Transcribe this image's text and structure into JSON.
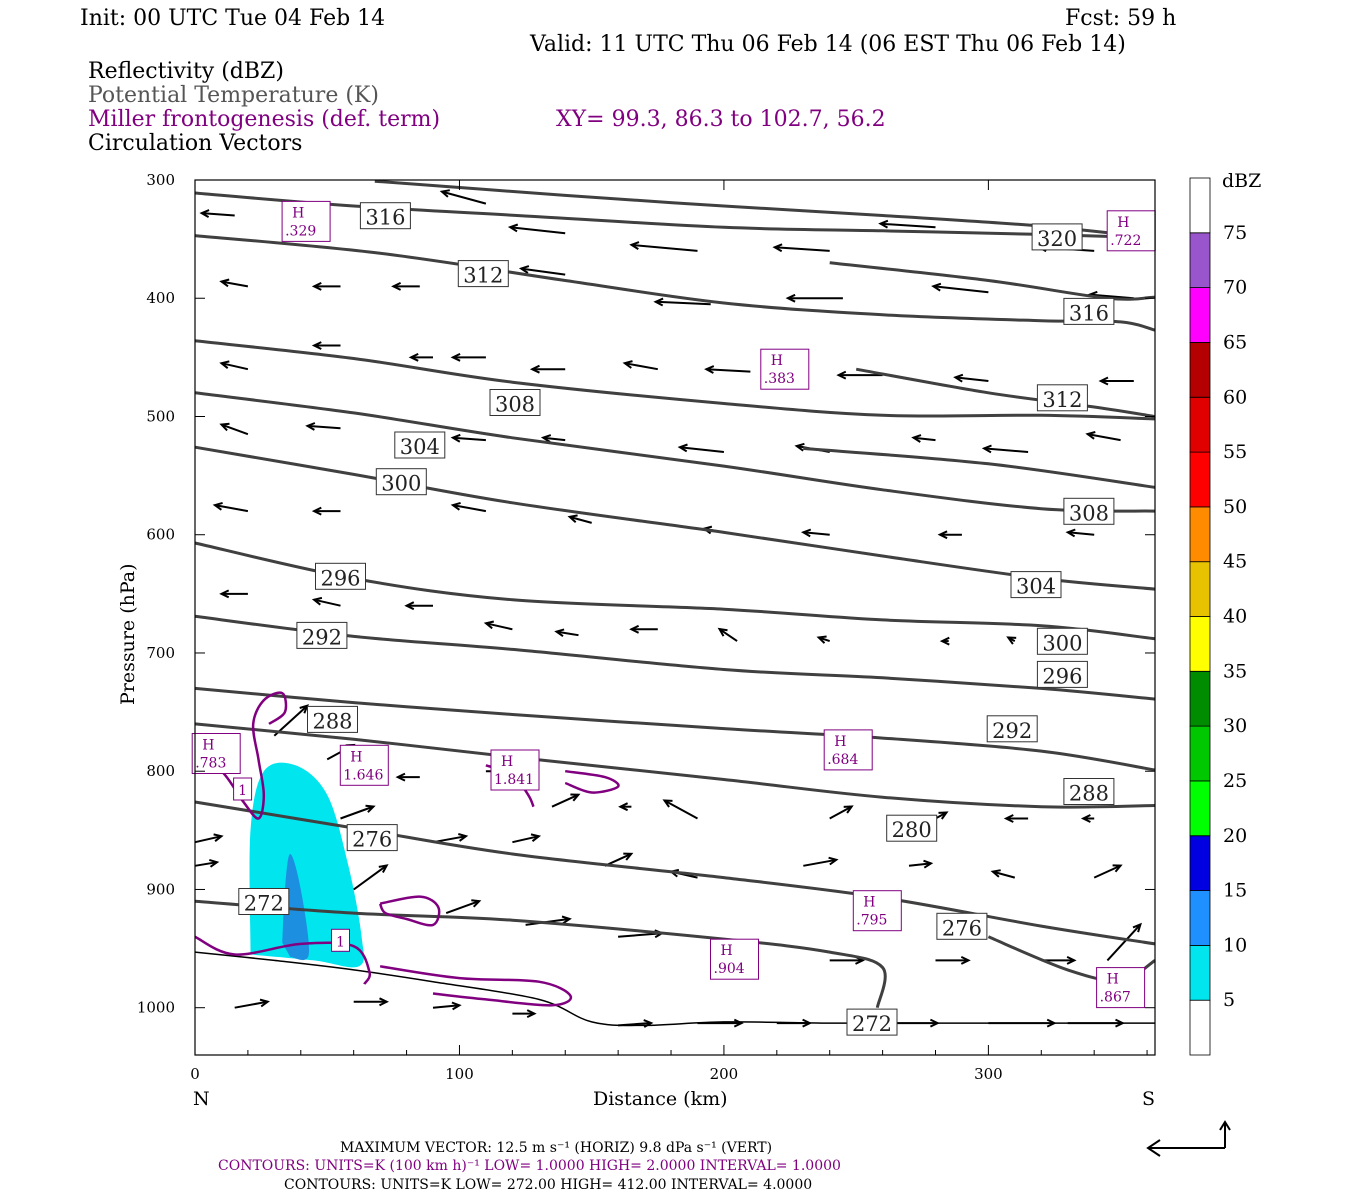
{
  "header": {
    "init": "Init: 00 UTC Tue 04 Feb 14",
    "fcst": "Fcst:   59 h",
    "valid": "Valid: 11 UTC Thu 06 Feb 14 (06 EST Thu 06 Feb 14)",
    "line_reflectivity": "Reflectivity (dBZ)",
    "line_theta": "Potential Temperature (K)",
    "line_miller": "Miller frontogenesis (def. term)",
    "line_xy": "XY=  99.3, 86.3 to 102.7, 56.2",
    "line_vectors": "Circulation Vectors"
  },
  "colors": {
    "theta": "#404040",
    "miller": "#800080",
    "refl_5": "#00e5ee",
    "refl_10": "#1c8fe0"
  },
  "colorbar": {
    "unit": "dBZ",
    "levels": [
      "5",
      "10",
      "15",
      "20",
      "25",
      "30",
      "35",
      "40",
      "45",
      "50",
      "55",
      "60",
      "65",
      "70",
      "75"
    ],
    "colors": [
      "#ffffff",
      "#00e5ee",
      "#1e90ff",
      "#0000e0",
      "#00ff00",
      "#00c800",
      "#008c00",
      "#ffff00",
      "#e6c200",
      "#ff8c00",
      "#ff0000",
      "#e00000",
      "#b40000",
      "#ff00ff",
      "#9955cc",
      "#ffffff"
    ]
  },
  "chart_data": {
    "type": "cross-section",
    "xlabel": "Distance (km)",
    "ylabel": "Pressure (hPa)",
    "xlim": [
      0,
      363
    ],
    "ylim": [
      1040,
      300
    ],
    "x_ticks": [
      "0",
      "100",
      "200",
      "300"
    ],
    "y_ticks": [
      "300",
      "400",
      "500",
      "600",
      "700",
      "800",
      "900",
      "1000"
    ],
    "left_endpoint": "N",
    "right_endpoint": "S",
    "theta_contours": [
      {
        "label": "316",
        "points": [
          [
            0,
            311
          ],
          [
            60,
            322
          ],
          [
            130,
            331
          ],
          [
            200,
            340
          ],
          [
            260,
            343
          ],
          [
            320,
            346
          ],
          [
            363,
            349
          ]
        ]
      },
      {
        "label": "320",
        "points": [
          [
            68,
            301
          ],
          [
            140,
            313
          ],
          [
            200,
            322
          ],
          [
            260,
            330
          ],
          [
            320,
            339
          ],
          [
            363,
            349
          ]
        ]
      },
      {
        "label": "312",
        "points": [
          [
            0,
            347
          ],
          [
            70,
            362
          ],
          [
            140,
            385
          ],
          [
            200,
            404
          ],
          [
            260,
            414
          ],
          [
            320,
            419
          ],
          [
            350,
            420
          ],
          [
            363,
            427
          ]
        ]
      },
      {
        "label": "316b",
        "points": [
          [
            240,
            370
          ],
          [
            300,
            385
          ],
          [
            345,
            400
          ],
          [
            363,
            399
          ]
        ]
      },
      {
        "label": "308",
        "points": [
          [
            0,
            436
          ],
          [
            60,
            451
          ],
          [
            120,
            471
          ],
          [
            200,
            489
          ],
          [
            260,
            499
          ],
          [
            320,
            499
          ],
          [
            363,
            502
          ]
        ]
      },
      {
        "label": "312b",
        "points": [
          [
            250,
            460
          ],
          [
            300,
            480
          ],
          [
            340,
            492
          ],
          [
            363,
            500
          ]
        ]
      },
      {
        "label": "304",
        "points": [
          [
            0,
            480
          ],
          [
            60,
            497
          ],
          [
            120,
            518
          ],
          [
            200,
            542
          ],
          [
            260,
            562
          ],
          [
            320,
            578
          ],
          [
            363,
            580
          ]
        ]
      },
      {
        "label": "308b",
        "points": [
          [
            230,
            527
          ],
          [
            300,
            540
          ],
          [
            363,
            560
          ]
        ]
      },
      {
        "label": "300",
        "points": [
          [
            0,
            526
          ],
          [
            60,
            549
          ],
          [
            120,
            573
          ],
          [
            200,
            598
          ],
          [
            260,
            618
          ],
          [
            320,
            637
          ],
          [
            363,
            646
          ]
        ]
      },
      {
        "label": "296",
        "points": [
          [
            0,
            607
          ],
          [
            60,
            637
          ],
          [
            120,
            655
          ],
          [
            200,
            663
          ],
          [
            260,
            672
          ],
          [
            320,
            677
          ],
          [
            363,
            688
          ]
        ]
      },
      {
        "label": "292",
        "points": [
          [
            0,
            669
          ],
          [
            60,
            686
          ],
          [
            120,
            697
          ],
          [
            200,
            714
          ],
          [
            260,
            721
          ],
          [
            320,
            730
          ],
          [
            363,
            739
          ]
        ]
      },
      {
        "label": "288",
        "points": [
          [
            0,
            730
          ],
          [
            60,
            742
          ],
          [
            120,
            752
          ],
          [
            200,
            764
          ],
          [
            260,
            772
          ],
          [
            320,
            783
          ],
          [
            363,
            799
          ]
        ]
      },
      {
        "label": "280",
        "points": [
          [
            0,
            760
          ],
          [
            60,
            773
          ],
          [
            120,
            788
          ],
          [
            200,
            807
          ],
          [
            260,
            822
          ],
          [
            320,
            830
          ],
          [
            363,
            829
          ]
        ]
      },
      {
        "label": "276",
        "points": [
          [
            0,
            826
          ],
          [
            60,
            848
          ],
          [
            120,
            870
          ],
          [
            200,
            890
          ],
          [
            260,
            907
          ],
          [
            320,
            931
          ],
          [
            363,
            946
          ]
        ]
      },
      {
        "label": "272",
        "points": [
          [
            0,
            910
          ],
          [
            60,
            920
          ],
          [
            120,
            926
          ],
          [
            200,
            942
          ],
          [
            240,
            953
          ],
          [
            260,
            966
          ],
          [
            258,
            1000
          ]
        ]
      },
      {
        "label": "276b",
        "points": [
          [
            300,
            940
          ],
          [
            330,
            968
          ],
          [
            350,
            977
          ],
          [
            363,
            960
          ]
        ]
      }
    ],
    "theta_labels": [
      {
        "text": "316",
        "x": 72,
        "p": 331
      },
      {
        "text": "312",
        "x": 109,
        "p": 380
      },
      {
        "text": "308",
        "x": 121,
        "p": 489
      },
      {
        "text": "304",
        "x": 85,
        "p": 525
      },
      {
        "text": "300",
        "x": 78,
        "p": 556
      },
      {
        "text": "296",
        "x": 55,
        "p": 636
      },
      {
        "text": "292",
        "x": 48,
        "p": 686
      },
      {
        "text": "288",
        "x": 52,
        "p": 757
      },
      {
        "text": "276",
        "x": 67,
        "p": 857
      },
      {
        "text": "272",
        "x": 26,
        "p": 911
      },
      {
        "text": "320",
        "x": 326,
        "p": 349
      },
      {
        "text": "316",
        "x": 338,
        "p": 412
      },
      {
        "text": "312",
        "x": 328,
        "p": 485
      },
      {
        "text": "308",
        "x": 338,
        "p": 581
      },
      {
        "text": "304",
        "x": 318,
        "p": 643
      },
      {
        "text": "300",
        "x": 328,
        "p": 691
      },
      {
        "text": "296",
        "x": 328,
        "p": 719
      },
      {
        "text": "292",
        "x": 309,
        "p": 765
      },
      {
        "text": "288",
        "x": 338,
        "p": 818
      },
      {
        "text": "280",
        "x": 271,
        "p": 849
      },
      {
        "text": "276",
        "x": 290,
        "p": 932
      },
      {
        "text": "272",
        "x": 256,
        "p": 1013
      }
    ],
    "frontogenesis_maxima": [
      {
        "text": "H",
        "value": ".329",
        "x": 42,
        "p": 335
      },
      {
        "text": "H",
        "value": ".722",
        "x": 354,
        "p": 343
      },
      {
        "text": "H",
        "value": ".383",
        "x": 223,
        "p": 460
      },
      {
        "text": "H",
        "value": ".783",
        "x": 8,
        "p": 785
      },
      {
        "text": "H",
        "value": "1.646",
        "x": 64,
        "p": 795
      },
      {
        "text": "H",
        "value": "1.841",
        "x": 121,
        "p": 799
      },
      {
        "text": "H",
        "value": ".684",
        "x": 247,
        "p": 782
      },
      {
        "text": "H",
        "value": ".795",
        "x": 258,
        "p": 918
      },
      {
        "text": "H",
        "value": ".904",
        "x": 204,
        "p": 959
      },
      {
        "text": "H",
        "value": ".867",
        "x": 350,
        "p": 983
      }
    ],
    "frontogenesis_contour_labels": [
      {
        "text": "1",
        "x": 18,
        "p": 815
      },
      {
        "text": "1",
        "x": 55,
        "p": 943
      }
    ],
    "reflectivity": [
      {
        "level": "5",
        "points": [
          [
            21,
            950
          ],
          [
            21,
            850
          ],
          [
            26,
            800
          ],
          [
            38,
            795
          ],
          [
            50,
            820
          ],
          [
            58,
            880
          ],
          [
            63,
            940
          ],
          [
            62,
            965
          ],
          [
            45,
            960
          ],
          [
            21,
            955
          ]
        ]
      },
      {
        "level": "10",
        "points": [
          [
            33,
            945
          ],
          [
            34,
            900
          ],
          [
            36,
            870
          ],
          [
            40,
            900
          ],
          [
            43,
            955
          ],
          [
            36,
            957
          ]
        ]
      }
    ]
  },
  "footer": {
    "max_vector": "MAXIMUM VECTOR:  12.5 m s⁻¹ (HORIZ)          9.8 dPa s⁻¹ (VERT)",
    "contours_miller": "CONTOURS:  UNITS=K (100 km h)⁻¹  LOW=   1.0000       HIGH=  2.0000       INTERVAL=    1.0000",
    "contours_theta": "CONTOURS:  UNITS=K  LOW=  272.00        HIGH=  412.00        INTERVAL=    4.0000"
  }
}
